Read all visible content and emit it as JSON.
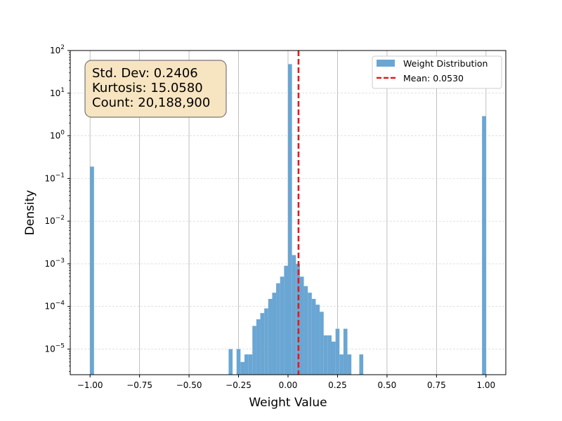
{
  "chart_data": {
    "type": "bar",
    "scale": {
      "y": "log"
    },
    "xlabel": "Weight Value",
    "ylabel": "Density",
    "xlim": [
      -1.1,
      1.1
    ],
    "ylim_exponent": [
      -5.6,
      2
    ],
    "x_ticks": [
      {
        "value": -1.0,
        "label": "−1.00"
      },
      {
        "value": -0.75,
        "label": "−0.75"
      },
      {
        "value": -0.5,
        "label": "−0.50"
      },
      {
        "value": -0.25,
        "label": "−0.25"
      },
      {
        "value": 0.0,
        "label": "0.00"
      },
      {
        "value": 0.25,
        "label": "0.25"
      },
      {
        "value": 0.5,
        "label": "0.50"
      },
      {
        "value": 0.75,
        "label": "0.75"
      },
      {
        "value": 1.0,
        "label": "1.00"
      }
    ],
    "y_ticks": [
      {
        "exponent": 2,
        "label": "10"
      },
      {
        "exponent": 1,
        "label": "10"
      },
      {
        "exponent": 0,
        "label": "10"
      },
      {
        "exponent": -1,
        "label": "10"
      },
      {
        "exponent": -2,
        "label": "10"
      },
      {
        "exponent": -3,
        "label": "10"
      },
      {
        "exponent": -4,
        "label": "10"
      },
      {
        "exponent": -5,
        "label": "10"
      }
    ],
    "grid": true,
    "legend_position": "top-right",
    "legend": [
      {
        "label": "Weight Distribution",
        "kind": "bar"
      },
      {
        "label": "Mean: 0.0530",
        "kind": "dashed-line"
      }
    ],
    "mean": 0.053,
    "stats_lines": [
      "Std. Dev: 0.2406",
      "Kurtosis: 15.0580",
      "Count: 20,188,900"
    ],
    "bin_width": 0.02,
    "bins": [
      {
        "x": -1.0,
        "density": 0.19
      },
      {
        "x": -0.38,
        "density": 2.5e-06
      },
      {
        "x": -0.32,
        "density": 2.5e-06
      },
      {
        "x": -0.3,
        "density": 1e-05
      },
      {
        "x": -0.28,
        "density": 2.5e-06
      },
      {
        "x": -0.26,
        "density": 1e-05
      },
      {
        "x": -0.24,
        "density": 5e-06
      },
      {
        "x": -0.22,
        "density": 7.5e-06
      },
      {
        "x": -0.2,
        "density": 7.5e-06
      },
      {
        "x": -0.18,
        "density": 3.5e-05
      },
      {
        "x": -0.16,
        "density": 5e-05
      },
      {
        "x": -0.14,
        "density": 7e-05
      },
      {
        "x": -0.12,
        "density": 9e-05
      },
      {
        "x": -0.1,
        "density": 0.00015
      },
      {
        "x": -0.08,
        "density": 0.00021
      },
      {
        "x": -0.06,
        "density": 0.00035
      },
      {
        "x": -0.04,
        "density": 0.0005
      },
      {
        "x": -0.02,
        "density": 0.0009
      },
      {
        "x": 0.0,
        "density": 48
      },
      {
        "x": 0.02,
        "density": 0.0016
      },
      {
        "x": 0.04,
        "density": 0.001
      },
      {
        "x": 0.06,
        "density": 0.0005
      },
      {
        "x": 0.08,
        "density": 0.0003
      },
      {
        "x": 0.1,
        "density": 0.00021
      },
      {
        "x": 0.12,
        "density": 0.00015
      },
      {
        "x": 0.14,
        "density": 0.00011
      },
      {
        "x": 0.16,
        "density": 7.5e-05
      },
      {
        "x": 0.18,
        "density": 2.1e-05
      },
      {
        "x": 0.2,
        "density": 2.1e-05
      },
      {
        "x": 0.22,
        "density": 1.5e-05
      },
      {
        "x": 0.24,
        "density": 3e-05
      },
      {
        "x": 0.26,
        "density": 7.5e-06
      },
      {
        "x": 0.28,
        "density": 3e-05
      },
      {
        "x": 0.3,
        "density": 7.5e-06
      },
      {
        "x": 0.36,
        "density": 7.5e-06
      },
      {
        "x": 0.98,
        "density": 2.9
      }
    ],
    "colors": {
      "bars": "#6aa6d3",
      "mean_line": "#e31a1c",
      "grid": "#cfcfcf",
      "stats_box_fill": "#f7e4c1"
    }
  }
}
